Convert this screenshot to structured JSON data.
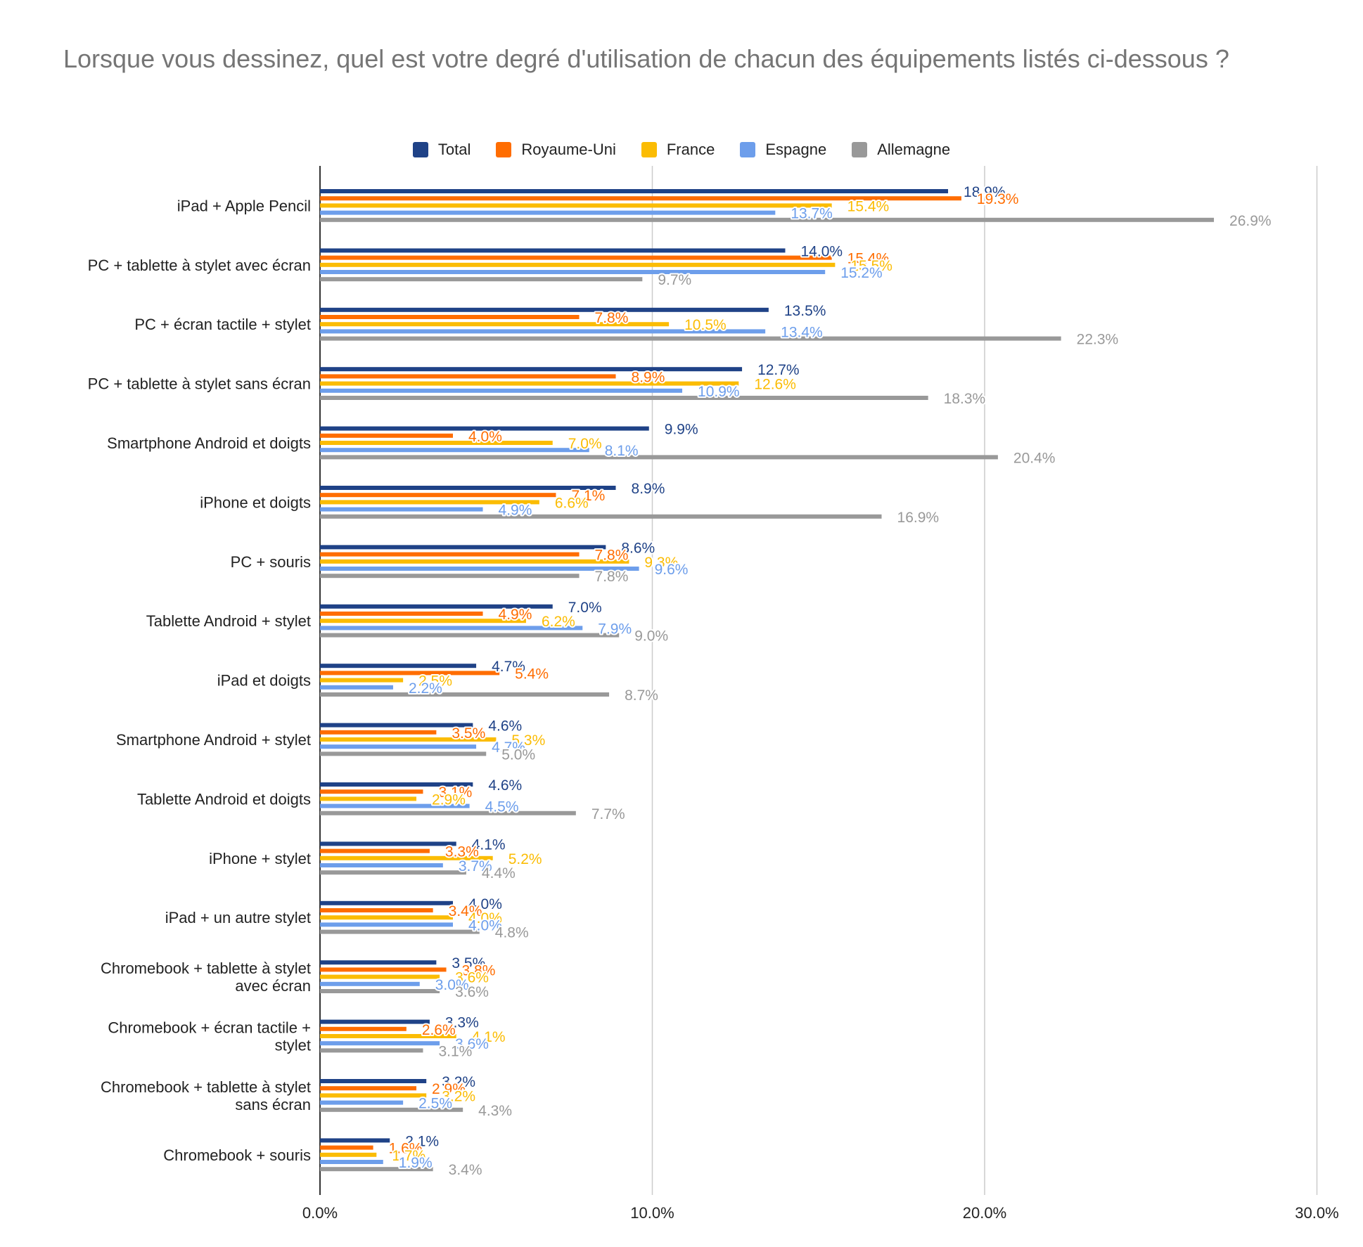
{
  "chart_data": {
    "type": "bar",
    "orientation": "horizontal",
    "title": "Lorsque vous dessinez, quel est votre degré d'utilisation de chacun des équipements listés ci-dessous ?",
    "xlim": [
      0,
      30
    ],
    "x_ticks": [
      "0.0%",
      "10.0%",
      "20.0%",
      "30.0%"
    ],
    "x_tick_values": [
      0,
      10,
      20,
      30
    ],
    "grid": true,
    "legend_position": "top",
    "categories": [
      [
        "iPad + Apple Pencil"
      ],
      [
        "PC + tablette à stylet avec écran"
      ],
      [
        "PC + écran tactile + stylet"
      ],
      [
        "PC + tablette à stylet sans écran"
      ],
      [
        "Smartphone Android et doigts"
      ],
      [
        "iPhone et doigts"
      ],
      [
        "PC + souris"
      ],
      [
        "Tablette Android + stylet"
      ],
      [
        "iPad et doigts"
      ],
      [
        "Smartphone Android + stylet"
      ],
      [
        "Tablette Android et doigts"
      ],
      [
        "iPhone + stylet"
      ],
      [
        "iPad + un autre stylet"
      ],
      [
        "Chromebook + tablette à stylet",
        "avec écran"
      ],
      [
        "Chromebook + écran tactile +",
        "stylet"
      ],
      [
        "Chromebook + tablette à stylet",
        "sans écran"
      ],
      [
        "Chromebook + souris"
      ]
    ],
    "series": [
      {
        "name": "Total",
        "color": "#1f4287",
        "values": [
          18.9,
          14.0,
          13.5,
          12.7,
          9.9,
          8.9,
          8.6,
          7.0,
          4.7,
          4.6,
          4.6,
          4.1,
          4.0,
          3.5,
          3.3,
          3.2,
          2.1
        ],
        "labels": [
          "18.9%",
          "14.0%",
          "13.5%",
          "12.7%",
          "9.9%",
          "8.9%",
          "8.6%",
          "7.0%",
          "4.7%",
          "4.6%",
          "4.6%",
          "4.1%",
          "4.0%",
          "3.5%",
          "3.3%",
          "3.2%",
          "2.1%"
        ]
      },
      {
        "name": "Royaume-Uni",
        "color": "#ff6d01",
        "values": [
          19.3,
          15.4,
          7.8,
          8.9,
          4.0,
          7.1,
          7.8,
          4.9,
          5.4,
          3.5,
          3.1,
          3.3,
          3.4,
          3.8,
          2.6,
          2.9,
          1.6
        ],
        "labels": [
          "19.3%",
          "15.4%",
          "7.8%",
          "8.9%",
          "4.0%",
          "7.1%",
          "7.8%",
          "4.9%",
          "5.4%",
          "3.5%",
          "3.1%",
          "3.3%",
          "3.4%",
          "3.8%",
          "2.6%",
          "2.9%",
          "1.6%"
        ]
      },
      {
        "name": "France",
        "color": "#fbbc04",
        "values": [
          15.4,
          15.5,
          10.5,
          12.6,
          7.0,
          6.6,
          9.3,
          6.2,
          2.5,
          5.3,
          2.9,
          5.2,
          4.0,
          3.6,
          4.1,
          3.2,
          1.7
        ],
        "labels": [
          "15.4%",
          "15.5%",
          "10.5%",
          "12.6%",
          "7.0%",
          "6.6%",
          "9.3%",
          "6.2%",
          "2.5%",
          "5.3%",
          "2.9%",
          "5.2%",
          "4.0%",
          "3.6%",
          "4.1%",
          "3.2%",
          "1.7%"
        ]
      },
      {
        "name": "Espagne",
        "color": "#6d9eeb",
        "values": [
          13.7,
          15.2,
          13.4,
          10.9,
          8.1,
          4.9,
          9.6,
          7.9,
          2.2,
          4.7,
          4.5,
          3.7,
          4.0,
          3.0,
          3.6,
          2.5,
          1.9
        ],
        "labels": [
          "13.7%",
          "15.2%",
          "13.4%",
          "10.9%",
          "8.1%",
          "4.9%",
          "9.6%",
          "7.9%",
          "2.2%",
          "4.7%",
          "4.5%",
          "3.7%",
          "4.0%",
          "3.0%",
          "3.6%",
          "2.5%",
          "1.9%"
        ]
      },
      {
        "name": "Allemagne",
        "color": "#999999",
        "values": [
          26.9,
          9.7,
          22.3,
          18.3,
          20.4,
          16.9,
          7.8,
          9.0,
          8.7,
          5.0,
          7.7,
          4.4,
          4.8,
          3.6,
          3.1,
          4.3,
          3.4
        ],
        "labels": [
          "26.9%",
          "9.7%",
          "22.3%",
          "18.3%",
          "20.4%",
          "16.9%",
          "7.8%",
          "9.0%",
          "8.7%",
          "5.0%",
          "7.7%",
          "4.4%",
          "4.8%",
          "3.6%",
          "3.1%",
          "4.3%",
          "3.4%"
        ]
      }
    ]
  }
}
